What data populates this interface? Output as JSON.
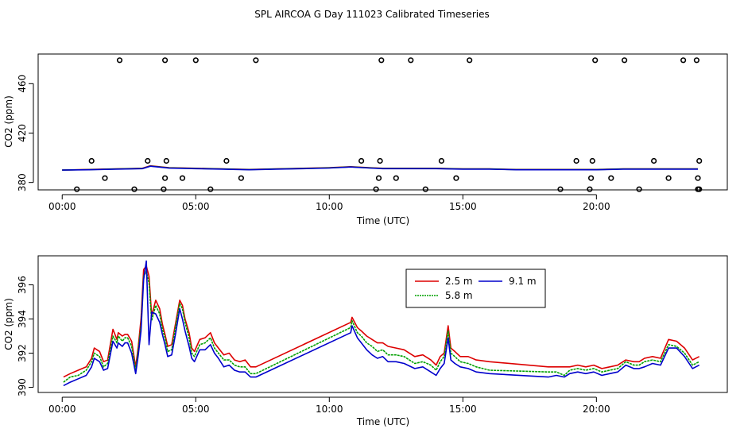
{
  "title": "SPL AIRCOA G  Day 111023  Calibrated Timeseries",
  "chart_data": [
    {
      "type": "scatter",
      "title": "",
      "xlabel": "Time (UTC)",
      "ylabel": "CO2 (ppm)",
      "xlim": [
        -0.9,
        24.9
      ],
      "ylim": [
        374,
        484
      ],
      "xticks": [
        0,
        5,
        10,
        15,
        20
      ],
      "xtick_labels": [
        "00:00",
        "05:00",
        "10:00",
        "15:00",
        "20:00"
      ],
      "yticks": [
        380,
        420,
        460
      ],
      "ytick_labels": [
        "380",
        "420",
        "460"
      ],
      "legend": "none",
      "grid": false,
      "points_x": [
        0.55,
        1.1,
        1.6,
        2.15,
        2.7,
        3.2,
        3.8,
        3.85,
        3.9,
        3.85,
        4.5,
        5.0,
        5.55,
        6.15,
        6.7,
        7.25,
        11.2,
        11.75,
        11.85,
        11.9,
        11.95,
        12.5,
        13.05,
        13.6,
        14.2,
        14.75,
        15.25,
        18.65,
        19.25,
        19.75,
        19.8,
        19.85,
        19.95,
        20.55,
        21.05,
        21.6,
        22.15,
        22.7,
        23.25,
        23.75,
        23.8,
        23.85,
        23.8,
        23.85
      ],
      "points_y": [
        374.5,
        397.5,
        383.5,
        479,
        374.5,
        397.5,
        374.5,
        383.5,
        397.5,
        479,
        383.5,
        479,
        374.5,
        397.5,
        383.5,
        479,
        397.5,
        374.5,
        383.5,
        397.5,
        479,
        383.5,
        479,
        374.5,
        397.5,
        383.5,
        479,
        374.5,
        397.5,
        374.5,
        383.5,
        397.5,
        479,
        383.5,
        479,
        374.5,
        397.5,
        383.5,
        479,
        479,
        383.5,
        397.5,
        374.5,
        374.5
      ],
      "series": [
        {
          "name": "2.5 m",
          "color": "#dd0000",
          "x": [
            0,
            1,
            2,
            3,
            3.3,
            4,
            5,
            6,
            7,
            8,
            9,
            10,
            10.8,
            11.5,
            12,
            13,
            14,
            15,
            16,
            17,
            18,
            19,
            20,
            21,
            22,
            23,
            23.8
          ],
          "values": [
            390,
            390.5,
            391,
            391.5,
            393.5,
            392,
            391.5,
            391,
            390.5,
            391,
            391.5,
            392,
            392.8,
            392,
            391.5,
            391.5,
            391.5,
            391,
            391,
            390.5,
            390.5,
            390.5,
            390.5,
            391,
            391,
            391,
            391
          ]
        },
        {
          "name": "5.8 m",
          "color": "#00a000",
          "x": [
            0,
            1,
            2,
            3,
            3.3,
            4,
            5,
            6,
            7,
            8,
            9,
            10,
            10.8,
            11.5,
            12,
            13,
            14,
            15,
            16,
            17,
            18,
            19,
            20,
            21,
            22,
            23,
            23.8
          ],
          "values": [
            390,
            390.4,
            390.9,
            391.3,
            393.3,
            391.8,
            391.3,
            390.9,
            390.4,
            390.9,
            391.3,
            391.8,
            392.6,
            391.8,
            391.3,
            391.3,
            391.3,
            390.9,
            390.9,
            390.4,
            390.4,
            390.4,
            390.4,
            390.9,
            390.9,
            390.9,
            390.9
          ]
        },
        {
          "name": "9.1 m",
          "color": "#0000cc",
          "x": [
            0,
            1,
            2,
            3,
            3.3,
            4,
            5,
            6,
            7,
            8,
            9,
            10,
            10.8,
            11.5,
            12,
            13,
            14,
            15,
            16,
            17,
            18,
            19,
            20,
            21,
            22,
            23,
            23.8
          ],
          "values": [
            390,
            390.3,
            390.8,
            391.2,
            393.2,
            391.6,
            391.2,
            390.8,
            390.3,
            390.8,
            391.2,
            391.7,
            392.5,
            391.7,
            391.2,
            391.2,
            391.2,
            390.8,
            390.8,
            390.3,
            390.3,
            390.3,
            390.3,
            390.8,
            390.8,
            390.8,
            390.8
          ]
        }
      ]
    },
    {
      "type": "line",
      "title": "",
      "xlabel": "Time (UTC)",
      "ylabel": "CO2 (ppm)",
      "xlim": [
        -0.9,
        24.9
      ],
      "ylim": [
        389.7,
        397.7
      ],
      "xticks": [
        0,
        5,
        10,
        15,
        20
      ],
      "xtick_labels": [
        "00:00",
        "05:00",
        "10:00",
        "15:00",
        "20:00"
      ],
      "yticks": [
        390,
        392,
        394,
        396
      ],
      "ytick_labels": [
        "390",
        "392",
        "394",
        "396"
      ],
      "legend": "top-right",
      "grid": false,
      "series": [
        {
          "name": "2.5 m",
          "color": "#dd0000",
          "x": [
            0.05,
            0.3,
            0.6,
            0.9,
            1.1,
            1.2,
            1.4,
            1.55,
            1.7,
            1.9,
            2.05,
            2.1,
            2.25,
            2.35,
            2.45,
            2.6,
            2.75,
            2.85,
            2.95,
            3.05,
            3.15,
            3.25,
            3.35,
            3.5,
            3.65,
            3.75,
            3.85,
            3.95,
            4.1,
            4.25,
            4.4,
            4.5,
            4.6,
            4.75,
            4.85,
            4.95,
            5.15,
            5.35,
            5.55,
            5.7,
            5.85,
            6.05,
            6.25,
            6.45,
            6.65,
            6.85,
            7.05,
            7.25,
            10.8,
            10.85,
            11.05,
            11.2,
            11.4,
            11.6,
            11.8,
            12.0,
            12.2,
            12.5,
            12.8,
            13.2,
            13.5,
            13.8,
            14.0,
            14.15,
            14.3,
            14.45,
            14.55,
            14.7,
            14.9,
            15.2,
            15.5,
            16.0,
            18.2,
            18.5,
            18.8,
            19.0,
            19.3,
            19.6,
            19.9,
            20.2,
            20.5,
            20.8,
            21.1,
            21.4,
            21.6,
            21.8,
            22.1,
            22.4,
            22.7,
            23.0,
            23.3,
            23.6,
            23.85
          ],
          "values": [
            390.6,
            390.8,
            391.0,
            391.2,
            391.7,
            392.3,
            392.1,
            391.5,
            391.6,
            393.4,
            392.8,
            393.2,
            393.0,
            393.1,
            393.1,
            392.7,
            391.2,
            392.4,
            394.0,
            396.9,
            397.1,
            396.5,
            394.2,
            395.1,
            394.6,
            393.7,
            393.1,
            392.4,
            392.5,
            393.8,
            395.1,
            394.8,
            394.0,
            393.2,
            392.3,
            392.1,
            392.8,
            392.9,
            393.2,
            392.6,
            392.3,
            391.9,
            392.0,
            391.6,
            391.5,
            391.6,
            391.2,
            391.2,
            393.8,
            394.1,
            393.5,
            393.3,
            393.0,
            392.8,
            392.6,
            392.6,
            392.4,
            392.3,
            392.2,
            391.8,
            391.9,
            391.6,
            391.3,
            391.8,
            392.0,
            393.6,
            392.3,
            392.1,
            391.8,
            391.8,
            391.6,
            391.5,
            391.2,
            391.2,
            391.2,
            391.2,
            391.3,
            391.2,
            391.3,
            391.1,
            391.2,
            391.3,
            391.6,
            391.5,
            391.5,
            391.7,
            391.8,
            391.7,
            392.8,
            392.7,
            392.3,
            391.6,
            391.8
          ]
        },
        {
          "name": "5.8 m",
          "color": "#00a000",
          "x": [
            0.05,
            0.3,
            0.6,
            0.9,
            1.1,
            1.2,
            1.4,
            1.55,
            1.7,
            1.9,
            2.05,
            2.1,
            2.25,
            2.35,
            2.45,
            2.6,
            2.75,
            2.85,
            2.95,
            3.05,
            3.15,
            3.25,
            3.35,
            3.5,
            3.65,
            3.75,
            3.85,
            3.95,
            4.1,
            4.25,
            4.4,
            4.5,
            4.6,
            4.75,
            4.85,
            4.95,
            5.15,
            5.35,
            5.55,
            5.7,
            5.85,
            6.05,
            6.25,
            6.45,
            6.65,
            6.85,
            7.05,
            7.25,
            10.8,
            10.85,
            11.05,
            11.2,
            11.4,
            11.6,
            11.8,
            12.0,
            12.2,
            12.5,
            12.8,
            13.2,
            13.5,
            13.8,
            14.0,
            14.15,
            14.3,
            14.45,
            14.55,
            14.7,
            14.9,
            15.2,
            15.5,
            16.0,
            18.2,
            18.5,
            18.8,
            19.0,
            19.3,
            19.6,
            19.9,
            20.2,
            20.5,
            20.8,
            21.1,
            21.4,
            21.6,
            21.8,
            22.1,
            22.4,
            22.7,
            23.0,
            23.3,
            23.6,
            23.85
          ],
          "values": [
            390.3,
            390.6,
            390.7,
            391.0,
            391.5,
            392.0,
            391.8,
            391.2,
            391.4,
            393.0,
            392.6,
            393.0,
            392.7,
            392.9,
            392.9,
            392.4,
            391.0,
            392.2,
            393.6,
            396.5,
            396.8,
            396.1,
            393.9,
            394.8,
            394.3,
            393.4,
            392.9,
            392.1,
            392.2,
            393.6,
            394.9,
            394.6,
            393.8,
            392.9,
            392.0,
            391.8,
            392.5,
            392.6,
            392.9,
            392.3,
            392.0,
            391.6,
            391.6,
            391.3,
            391.2,
            391.2,
            390.8,
            390.8,
            393.5,
            393.9,
            393.2,
            393.0,
            392.6,
            392.4,
            392.1,
            392.2,
            391.9,
            391.9,
            391.8,
            391.4,
            391.5,
            391.3,
            391.0,
            391.5,
            391.8,
            393.3,
            392.0,
            391.8,
            391.5,
            391.4,
            391.2,
            391.0,
            390.9,
            390.9,
            390.7,
            391.0,
            391.1,
            391.0,
            391.1,
            390.9,
            391.0,
            391.1,
            391.5,
            391.3,
            391.3,
            391.5,
            391.6,
            391.5,
            392.5,
            392.4,
            392.0,
            391.3,
            391.5
          ]
        },
        {
          "name": "9.1 m",
          "color": "#0000cc",
          "x": [
            0.05,
            0.3,
            0.6,
            0.9,
            1.1,
            1.2,
            1.4,
            1.55,
            1.7,
            1.9,
            2.05,
            2.1,
            2.25,
            2.35,
            2.45,
            2.6,
            2.75,
            2.85,
            2.95,
            3.05,
            3.15,
            3.25,
            3.35,
            3.5,
            3.65,
            3.75,
            3.85,
            3.95,
            4.1,
            4.25,
            4.4,
            4.5,
            4.6,
            4.75,
            4.85,
            4.95,
            5.15,
            5.35,
            5.55,
            5.7,
            5.85,
            6.05,
            6.25,
            6.45,
            6.65,
            6.85,
            7.05,
            7.25,
            10.8,
            10.85,
            11.05,
            11.2,
            11.4,
            11.6,
            11.8,
            12.0,
            12.2,
            12.5,
            12.8,
            13.2,
            13.5,
            13.8,
            14.0,
            14.15,
            14.3,
            14.45,
            14.55,
            14.7,
            14.9,
            15.2,
            15.5,
            16.0,
            18.2,
            18.5,
            18.8,
            19.0,
            19.3,
            19.6,
            19.9,
            20.2,
            20.5,
            20.8,
            21.1,
            21.4,
            21.6,
            21.8,
            22.1,
            22.4,
            22.7,
            23.0,
            23.3,
            23.6,
            23.85
          ],
          "values": [
            390.1,
            390.3,
            390.5,
            390.7,
            391.2,
            391.7,
            391.5,
            391.0,
            391.1,
            392.7,
            392.3,
            392.6,
            392.4,
            392.6,
            392.6,
            392.0,
            390.8,
            391.9,
            393.3,
            396.3,
            397.4,
            392.5,
            394.4,
            394.3,
            393.8,
            393.1,
            392.5,
            391.8,
            391.9,
            393.2,
            394.6,
            394.0,
            393.3,
            392.4,
            391.7,
            391.5,
            392.2,
            392.2,
            392.5,
            392.0,
            391.7,
            391.2,
            391.3,
            391.0,
            390.9,
            390.9,
            390.6,
            390.6,
            393.2,
            393.6,
            392.9,
            392.6,
            392.2,
            391.9,
            391.7,
            391.8,
            391.5,
            391.5,
            391.4,
            391.1,
            391.2,
            390.9,
            390.7,
            391.1,
            391.4,
            392.9,
            391.6,
            391.4,
            391.2,
            391.1,
            390.9,
            390.8,
            390.6,
            390.7,
            390.6,
            390.8,
            390.9,
            390.8,
            390.9,
            390.7,
            390.8,
            390.9,
            391.3,
            391.1,
            391.1,
            391.2,
            391.4,
            391.3,
            392.3,
            392.3,
            391.8,
            391.1,
            391.3
          ]
        }
      ]
    }
  ]
}
